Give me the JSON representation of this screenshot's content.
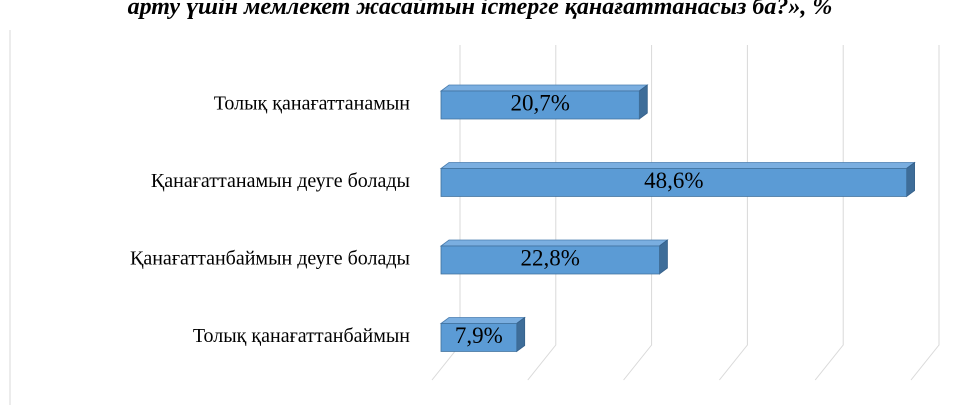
{
  "chart_data": {
    "type": "bar3d_horizontal",
    "title": "арту үшін мемлекет жасайтын істерге қанағаттанасыз ба?», %",
    "categories": [
      "Толық қанағаттанамын",
      "Қанағаттанамын деуге болады",
      "Қанағаттанбаймын деуге болады",
      "Толық қанағаттанбаймын"
    ],
    "values": [
      20.7,
      48.6,
      22.8,
      7.9
    ],
    "value_labels": [
      "20,7%",
      "48,6%",
      "22,8%",
      "7,9%"
    ],
    "color": "#5b9bd5",
    "xlim": [
      0,
      50
    ],
    "xticks": [
      0,
      10,
      20,
      30,
      40,
      50
    ],
    "grid": true
  }
}
